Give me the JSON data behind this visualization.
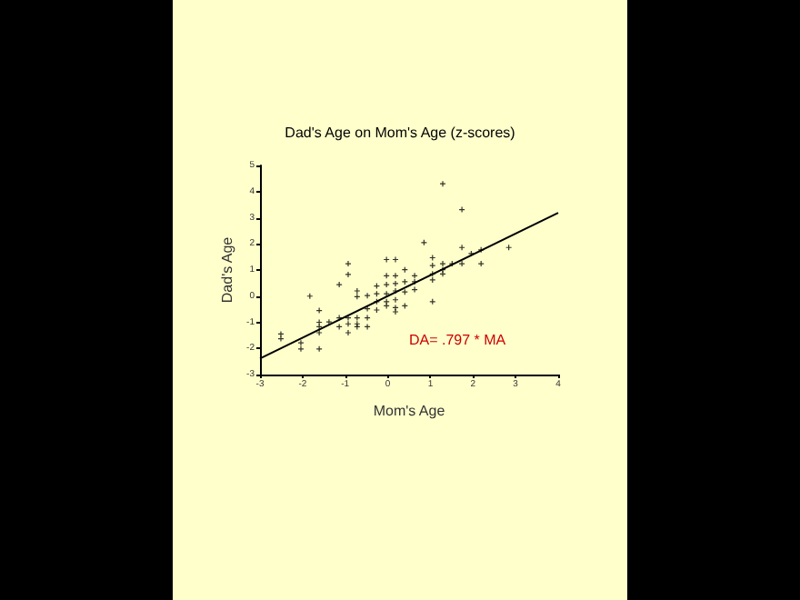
{
  "chart_data": {
    "type": "scatter",
    "title": "Dad's Age on Mom's Age (z-scores)",
    "xlabel": "Mom's Age",
    "ylabel": "Dad's Age",
    "xlim": [
      -3,
      4
    ],
    "ylim": [
      -3,
      5
    ],
    "xticks": [
      -3,
      -2,
      -1,
      0,
      1,
      2,
      3,
      4
    ],
    "yticks": [
      -3,
      -2,
      -1,
      0,
      1,
      2,
      3,
      4,
      5
    ],
    "grid": false,
    "marker": "cross",
    "annotations": [
      "DA= .797 * MA"
    ],
    "series": [
      {
        "color": "#000000",
        "x": [
          -2.51,
          -2.51,
          -2.04,
          -2.04,
          -1.83,
          -1.61,
          -1.61,
          -1.61,
          -1.61,
          -1.61,
          -1.38,
          -1.14,
          -1.14,
          -1.14,
          -0.93,
          -0.93,
          -0.93,
          -0.93,
          -0.93,
          -0.72,
          -0.72,
          -0.72,
          -0.72,
          -0.72,
          -0.48,
          -0.48,
          -0.48,
          -0.48,
          -0.26,
          -0.26,
          -0.26,
          -0.26,
          -0.03,
          -0.03,
          -0.03,
          -0.03,
          -0.03,
          -0.03,
          0.18,
          0.18,
          0.18,
          0.18,
          0.18,
          0.18,
          0.18,
          0.4,
          0.4,
          0.4,
          0.4,
          0.63,
          0.63,
          0.63,
          0.85,
          1.05,
          1.05,
          1.05,
          1.05,
          1.05,
          1.29,
          1.29,
          1.29,
          1.29,
          1.51,
          1.74,
          1.74,
          1.74,
          1.96,
          2.19,
          2.19,
          2.84
        ],
        "values": [
          -1.45,
          -1.63,
          -1.79,
          -2.02,
          0.0,
          -0.55,
          -1.0,
          -1.17,
          -1.4,
          -2.02,
          -0.99,
          0.44,
          -0.83,
          -1.17,
          1.24,
          0.83,
          -0.83,
          -1.06,
          -1.4,
          0.2,
          -0.02,
          -0.83,
          -1.06,
          -1.17,
          0.02,
          -0.48,
          -0.83,
          -1.17,
          0.39,
          0.09,
          -0.21,
          -0.53,
          1.4,
          0.78,
          0.44,
          0.09,
          -0.21,
          -0.37,
          1.4,
          0.78,
          0.48,
          0.2,
          -0.14,
          -0.44,
          -0.6,
          1.01,
          0.55,
          0.16,
          -0.37,
          0.78,
          0.55,
          0.25,
          2.05,
          1.47,
          1.17,
          0.85,
          0.62,
          -0.21,
          4.3,
          1.24,
          1.01,
          0.85,
          1.24,
          3.31,
          1.86,
          1.24,
          1.63,
          1.77,
          1.24,
          1.86
        ]
      },
      {
        "type": "line",
        "color": "#000000",
        "line_style": "solid",
        "marker": "none",
        "x": [
          -3,
          4
        ],
        "values": [
          -2.39,
          3.19
        ]
      }
    ]
  }
}
